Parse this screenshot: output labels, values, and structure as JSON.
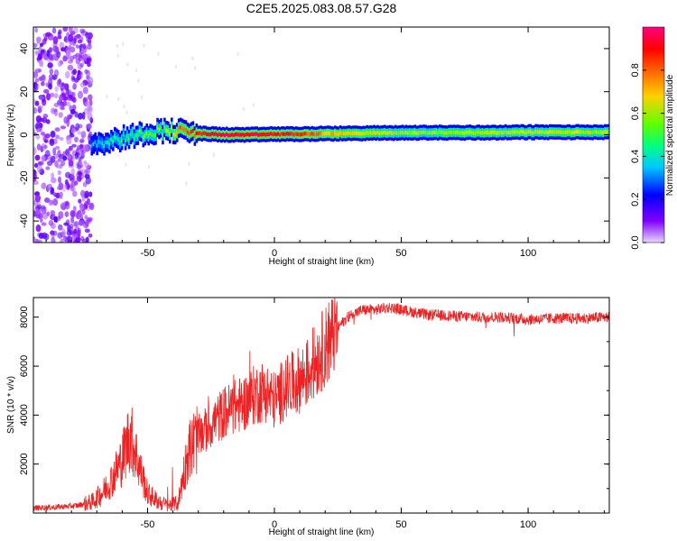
{
  "title": "C2E5.2025.083.08.57.G28",
  "chart_data": [
    {
      "type": "heatmap",
      "title": "C2E5.2025.083.08.57.G28",
      "xlabel": "Height of straight line (km)",
      "ylabel": "Frequency (Hz)",
      "xlim": [
        -95,
        132
      ],
      "ylim": [
        -50,
        50
      ],
      "xticks": [
        -50,
        0,
        50,
        100
      ],
      "yticks": [
        -40,
        -20,
        0,
        20,
        40
      ],
      "colorbar": {
        "label": "Normalized spectral amplitude",
        "ticks": [
          0.0,
          0.2,
          0.4,
          0.6,
          0.8
        ],
        "range": [
          0,
          1
        ],
        "colors": [
          "#e8d8ff",
          "#8000ff",
          "#0000ff",
          "#00c8ff",
          "#00ff80",
          "#80ff00",
          "#ffd000",
          "#ff6000",
          "#ff0000",
          "#ff0080"
        ]
      },
      "noise_region_x": [
        -95,
        -72
      ],
      "signal_trace": [
        {
          "x": -72,
          "y": -4,
          "amp": 0.35
        },
        {
          "x": -65,
          "y": -3,
          "amp": 0.4
        },
        {
          "x": -58,
          "y": -1,
          "amp": 0.45
        },
        {
          "x": -50,
          "y": 1,
          "amp": 0.5
        },
        {
          "x": -44,
          "y": 2,
          "amp": 0.5
        },
        {
          "x": -36,
          "y": 1.5,
          "amp": 0.8
        },
        {
          "x": -28,
          "y": 0.5,
          "amp": 0.85
        },
        {
          "x": -20,
          "y": 0,
          "amp": 0.95
        },
        {
          "x": -10,
          "y": 0,
          "amp": 0.95
        },
        {
          "x": 0,
          "y": 0.3,
          "amp": 0.9
        },
        {
          "x": 10,
          "y": 0.3,
          "amp": 0.85
        },
        {
          "x": 20,
          "y": 0.5,
          "amp": 0.7
        },
        {
          "x": 40,
          "y": 0.8,
          "amp": 0.6
        },
        {
          "x": 60,
          "y": 1,
          "amp": 0.55
        },
        {
          "x": 80,
          "y": 1,
          "amp": 0.6
        },
        {
          "x": 100,
          "y": 1.2,
          "amp": 0.6
        },
        {
          "x": 120,
          "y": 1.2,
          "amp": 0.6
        },
        {
          "x": 132,
          "y": 1.2,
          "amp": 0.55
        }
      ]
    },
    {
      "type": "line",
      "xlabel": "Height of straight line (km)",
      "ylabel": "SNR (10 * v/v)",
      "xlim": [
        -95,
        132
      ],
      "ylim": [
        0,
        8800
      ],
      "xticks": [
        -50,
        0,
        50,
        100
      ],
      "yticks": [
        2000,
        4000,
        6000,
        8000
      ],
      "color": "#ee2222",
      "series": [
        {
          "name": "SNR",
          "x": [
            -95,
            -85,
            -78,
            -72,
            -68,
            -64,
            -60,
            -57,
            -55,
            -53,
            -50,
            -46,
            -42,
            -38,
            -36,
            -34,
            -31,
            -28,
            -24,
            -20,
            -16,
            -12,
            -8,
            -4,
            0,
            4,
            8,
            12,
            15,
            18,
            22,
            26,
            30,
            35,
            40,
            45,
            50,
            55,
            60,
            70,
            80,
            90,
            100,
            110,
            120,
            132
          ],
          "y": [
            200,
            250,
            300,
            450,
            800,
            1400,
            2200,
            3200,
            2600,
            1800,
            800,
            500,
            300,
            400,
            1500,
            2500,
            3000,
            3300,
            3700,
            4100,
            4300,
            4500,
            4800,
            5000,
            4600,
            5100,
            5300,
            5600,
            6000,
            6500,
            7100,
            7700,
            8100,
            8300,
            8300,
            8400,
            8300,
            8200,
            8100,
            8050,
            8000,
            8000,
            7900,
            7950,
            7950,
            8000
          ]
        }
      ]
    }
  ]
}
